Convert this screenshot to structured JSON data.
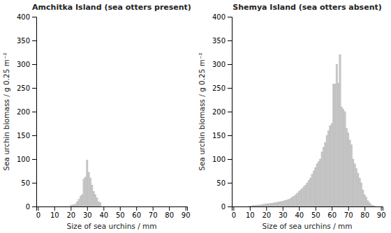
{
  "chart_data": [
    {
      "type": "bar",
      "title": "Amchitka Island (sea otters present)",
      "x_label": "Size of sea urchins / mm",
      "y_label": "Sea urchin biomass / g 0.25 m⁻²",
      "x": [
        20,
        21,
        22,
        23,
        24,
        25,
        26,
        27,
        28,
        29,
        30,
        31,
        32,
        33,
        34,
        35,
        36,
        37,
        38
      ],
      "values": [
        2,
        3,
        4,
        5,
        10,
        15,
        22,
        25,
        58,
        62,
        98,
        72,
        60,
        45,
        32,
        25,
        18,
        10,
        8
      ],
      "color": "#c8c8c8",
      "xlim": [
        -1,
        91
      ],
      "ylim": [
        0,
        400
      ],
      "xticks": [
        0,
        10,
        20,
        30,
        40,
        50,
        60,
        70,
        80,
        90
      ],
      "yticks": [
        0,
        50,
        100,
        150,
        200,
        250,
        300,
        350,
        400
      ],
      "grid": false
    },
    {
      "type": "bar",
      "title": "Shemya Island (sea otters absent)",
      "x_label": "Size of sea urchins / mm",
      "y_label": "Sea urchin biomass / g 0.25 m⁻²",
      "x": [
        10,
        11,
        12,
        13,
        14,
        15,
        16,
        17,
        18,
        19,
        20,
        21,
        22,
        23,
        24,
        25,
        26,
        27,
        28,
        29,
        30,
        31,
        32,
        33,
        34,
        35,
        36,
        37,
        38,
        39,
        40,
        41,
        42,
        43,
        44,
        45,
        46,
        47,
        48,
        49,
        50,
        51,
        52,
        53,
        54,
        55,
        56,
        57,
        58,
        59,
        60,
        61,
        62,
        63,
        64,
        65,
        66,
        67,
        68,
        69,
        70,
        71,
        72,
        73,
        74,
        75,
        76,
        77,
        78,
        79,
        80,
        81,
        82,
        83,
        84,
        85,
        86
      ],
      "values": [
        1,
        1,
        2,
        2,
        2,
        3,
        3,
        4,
        4,
        5,
        5,
        6,
        6,
        7,
        7,
        8,
        8,
        9,
        10,
        10,
        11,
        12,
        13,
        14,
        15,
        17,
        20,
        22,
        25,
        28,
        32,
        35,
        38,
        42,
        45,
        50,
        55,
        60,
        68,
        75,
        82,
        90,
        95,
        100,
        115,
        125,
        135,
        150,
        160,
        170,
        175,
        258,
        258,
        300,
        260,
        320,
        210,
        205,
        200,
        165,
        155,
        140,
        130,
        100,
        90,
        80,
        70,
        60,
        50,
        35,
        25,
        20,
        12,
        8,
        4,
        2,
        1
      ],
      "color": "#c8c8c8",
      "xlim": [
        -1,
        91
      ],
      "ylim": [
        0,
        400
      ],
      "xticks": [
        0,
        10,
        20,
        30,
        40,
        50,
        60,
        70,
        80,
        90
      ],
      "yticks": [
        0,
        50,
        100,
        150,
        200,
        250,
        300,
        350,
        400
      ],
      "grid": false
    }
  ]
}
